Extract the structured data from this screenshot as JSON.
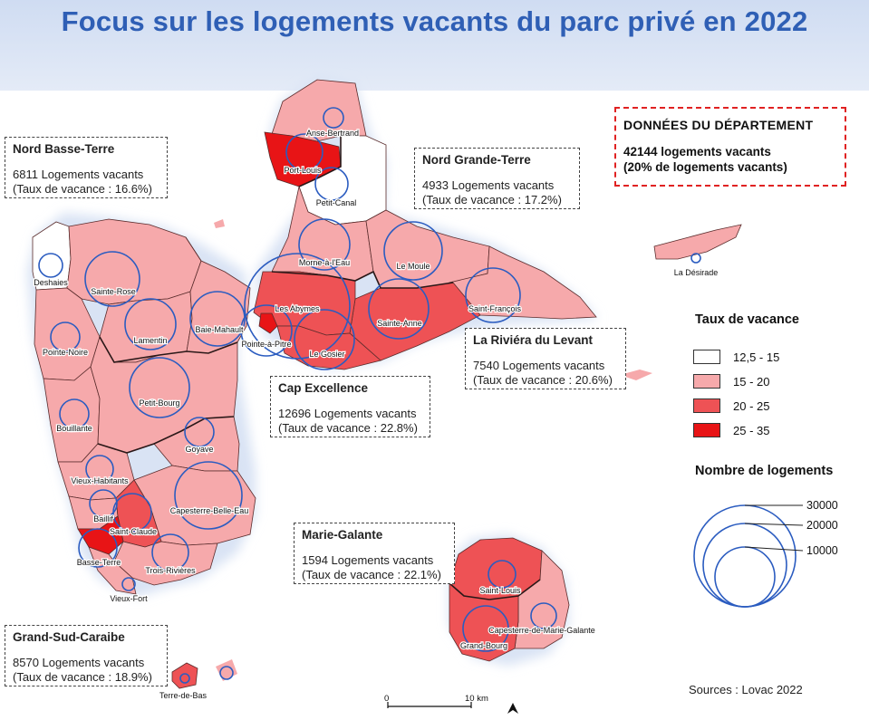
{
  "title": "Focus sur les logements vacants du parc privé en 2022",
  "department": {
    "heading": "DONNÉES DU DÉPARTEMENT",
    "line1": "42144 logements vacants",
    "line2": "(20% de logements vacants)"
  },
  "zones": [
    {
      "name": "Nord Basse-Terre",
      "count": "6811 Logements vacants",
      "rate": "(Taux de vacance : 16.6%)"
    },
    {
      "name": "Nord Grande-Terre",
      "count": "4933 Logements vacants",
      "rate": "(Taux de vacance : 17.2%)"
    },
    {
      "name": "La Riviéra du Levant",
      "count": "7540 Logements vacants",
      "rate": "(Taux de vacance : 20.6%)"
    },
    {
      "name": "Cap Excellence",
      "count": "12696 Logements vacants",
      "rate": "(Taux de vacance : 22.8%)"
    },
    {
      "name": "Marie-Galante",
      "count": "1594 Logements vacants",
      "rate": "(Taux de vacance : 22.1%)"
    },
    {
      "name": "Grand-Sud-Caraibe",
      "count": "8570 Logements vacants",
      "rate": "(Taux de vacance : 18.9%)"
    }
  ],
  "legend": {
    "rate_title": "Taux de vacance",
    "classes": [
      {
        "label": "12,5 - 15",
        "color": "#ffffff"
      },
      {
        "label": "15 - 20",
        "color": "#f6a9ab"
      },
      {
        "label": "20 - 25",
        "color": "#ee5255"
      },
      {
        "label": "25 - 35",
        "color": "#e81416"
      }
    ],
    "size_title": "Nombre de logements",
    "size_values": [
      "30000",
      "20000",
      "10000"
    ]
  },
  "communes": [
    "Anse-Bertrand",
    "Port-Louis",
    "Petit-Canal",
    "Morne-à-l'Eau",
    "Le Moule",
    "La Désirade",
    "Saint-François",
    "Sainte-Anne",
    "Le Gosier",
    "Les Abymes",
    "Pointe-à-Pitre",
    "Baie-Mahault",
    "Lamentin",
    "Sainte-Rose",
    "Deshaies",
    "Pointe-Noire",
    "Petit-Bourg",
    "Goyave",
    "Bouillante",
    "Vieux-Habitants",
    "Capesterre-Belle-Eau",
    "Baillif",
    "Saint-Claude",
    "Basse-Terre",
    "Trois-Rivières",
    "Vieux-Fort",
    "Saint-Louis",
    "Capesterre-de-Marie-Galante",
    "Grand-Bourg",
    "Terre-de-Bas"
  ],
  "scale": {
    "start": "0",
    "end": "10 km"
  },
  "sources": "Sources : Lovac 2022",
  "colors": {
    "title": "#2f5fb5",
    "circle": "#2b5cc0",
    "dept_border": "#e02222"
  }
}
